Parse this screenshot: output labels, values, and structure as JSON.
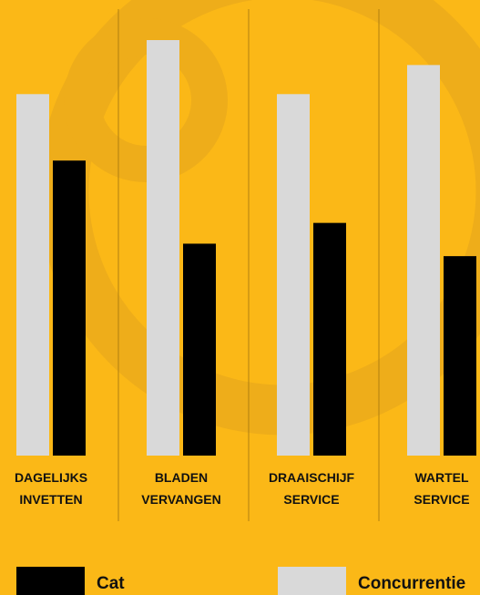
{
  "chart_data": {
    "type": "bar",
    "categories": [
      "DAGELIJKS INVETTEN",
      "BLADEN VERVANGEN",
      "DRAAISCHIJF SERVICE",
      "WARTEL SERVICE"
    ],
    "series": [
      {
        "name": "Cat",
        "color": "#000000",
        "values": [
          71,
          51,
          56,
          48
        ]
      },
      {
        "name": "Concurrentie",
        "color": "#d9d9d9",
        "values": [
          87,
          100,
          87,
          94
        ]
      }
    ]
  }
}
